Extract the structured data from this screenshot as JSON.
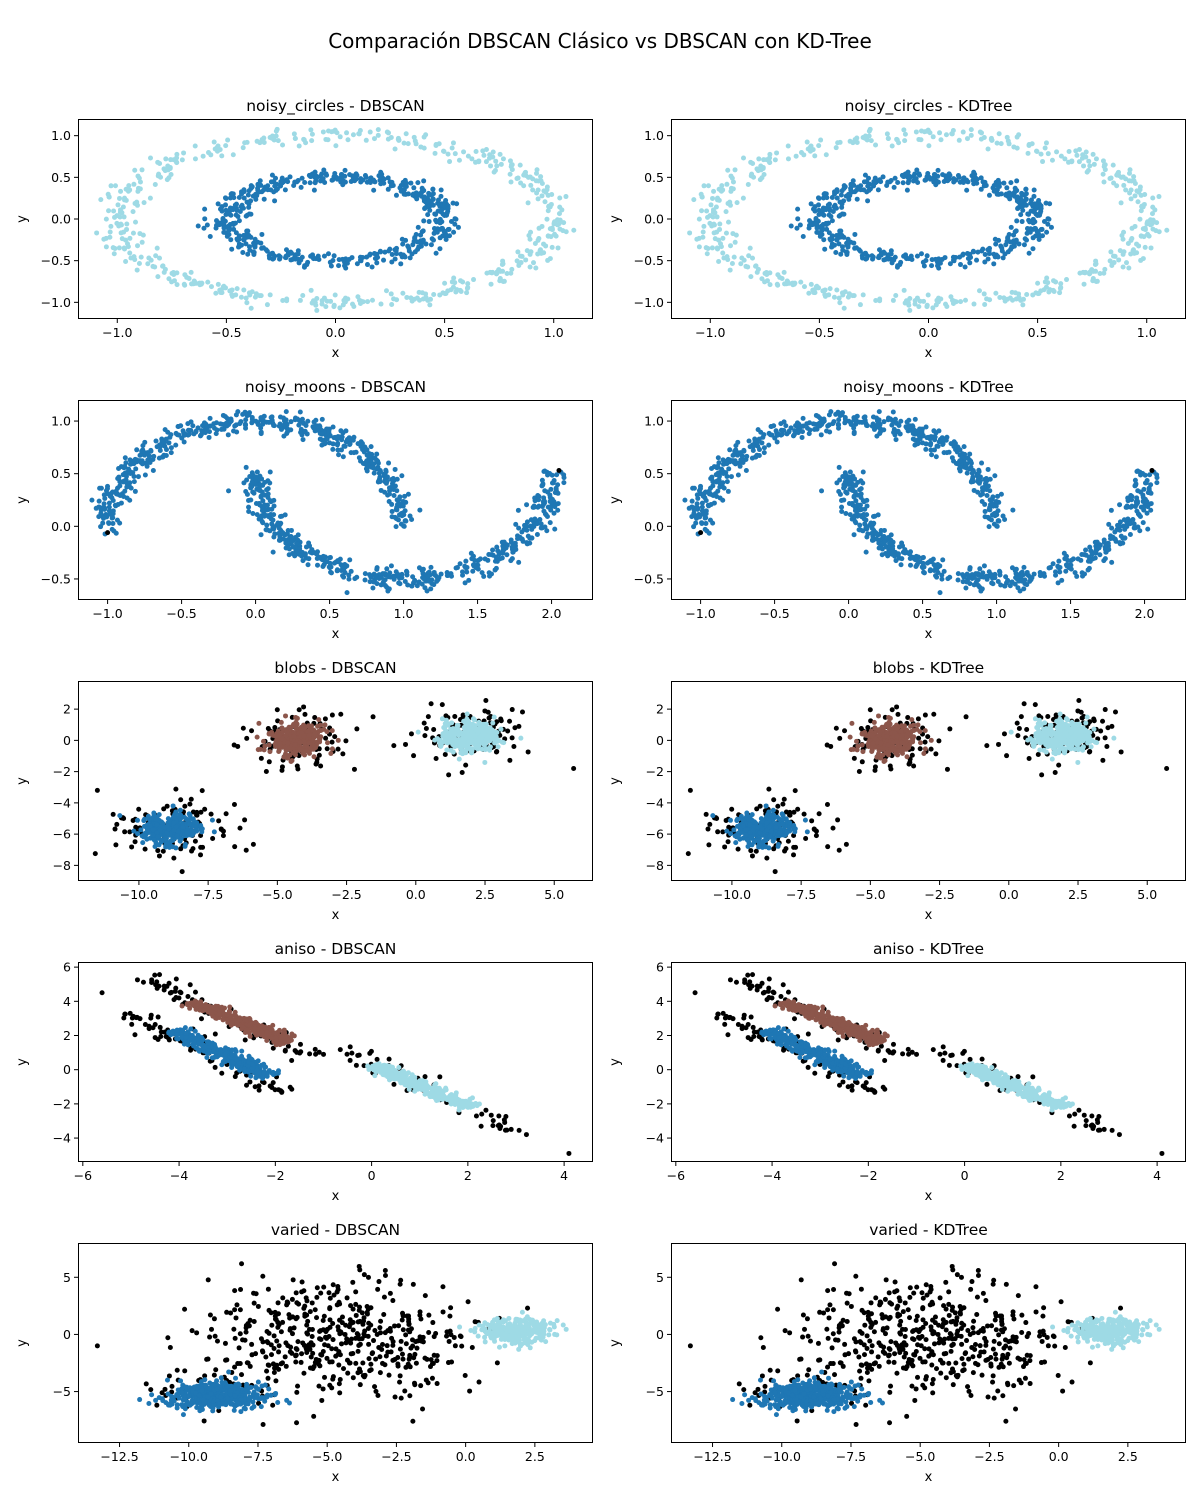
{
  "figure": {
    "title": "Comparación DBSCAN Clásico vs DBSCAN con KD-Tree",
    "colors": {
      "cluster_a": "#1f77b4",
      "cluster_b": "#8c564b",
      "cluster_c": "#9edae5",
      "noise": "#000000"
    }
  },
  "chart_data": [
    {
      "type": "scatter",
      "dataset": "noisy_circles",
      "method": "DBSCAN",
      "title": "noisy_circles - DBSCAN",
      "xlabel": "x",
      "ylabel": "y",
      "xlim": [
        -1.18,
        1.18
      ],
      "ylim": [
        -1.2,
        1.2
      ],
      "xticks": [
        -1.0,
        -0.5,
        0.0,
        0.5,
        1.0
      ],
      "xtick_labels": [
        "−1.0",
        "−0.5",
        "0.0",
        "0.5",
        "1.0"
      ],
      "yticks": [
        -1.0,
        -0.5,
        0.0,
        0.5,
        1.0
      ],
      "ytick_labels": [
        "−1.0",
        "−0.5",
        "0.0",
        "0.5",
        "1.0"
      ],
      "series": [
        {
          "color": "#9edae5",
          "shape": "ellipse",
          "center": [
            0,
            0
          ],
          "radii": [
            1.0,
            1.0
          ],
          "spread": 0.05,
          "count": 500
        },
        {
          "color": "#1f77b4",
          "shape": "ellipse",
          "center": [
            0,
            0
          ],
          "radii": [
            0.5,
            0.5
          ],
          "spread": 0.05,
          "count": 500
        }
      ]
    },
    {
      "type": "scatter",
      "dataset": "noisy_circles",
      "method": "KDTree",
      "title": "noisy_circles - KDTree",
      "xlabel": "x",
      "ylabel": "y",
      "xlim": [
        -1.18,
        1.18
      ],
      "ylim": [
        -1.2,
        1.2
      ],
      "xticks": [
        -1.0,
        -0.5,
        0.0,
        0.5,
        1.0
      ],
      "xtick_labels": [
        "−1.0",
        "−0.5",
        "0.0",
        "0.5",
        "1.0"
      ],
      "yticks": [
        -1.0,
        -0.5,
        0.0,
        0.5,
        1.0
      ],
      "ytick_labels": [
        "−1.0",
        "−0.5",
        "0.0",
        "0.5",
        "1.0"
      ],
      "series": [
        {
          "color": "#9edae5",
          "shape": "ellipse",
          "center": [
            0,
            0
          ],
          "radii": [
            1.0,
            1.0
          ],
          "spread": 0.05,
          "count": 500
        },
        {
          "color": "#1f77b4",
          "shape": "ellipse",
          "center": [
            0,
            0
          ],
          "radii": [
            0.5,
            0.5
          ],
          "spread": 0.05,
          "count": 500
        }
      ]
    },
    {
      "type": "scatter",
      "dataset": "noisy_moons",
      "method": "DBSCAN",
      "title": "noisy_moons - DBSCAN",
      "xlabel": "x",
      "ylabel": "y",
      "xlim": [
        -1.2,
        2.28
      ],
      "ylim": [
        -0.7,
        1.2
      ],
      "xticks": [
        -1.0,
        -0.5,
        0.0,
        0.5,
        1.0,
        1.5,
        2.0
      ],
      "xtick_labels": [
        "−1.0",
        "−0.5",
        "0.0",
        "0.5",
        "1.0",
        "1.5",
        "2.0"
      ],
      "yticks": [
        -0.5,
        0.0,
        0.5,
        1.0
      ],
      "ytick_labels": [
        "−0.5",
        "0.0",
        "0.5",
        "1.0"
      ],
      "series": [
        {
          "color": "#1f77b4",
          "shape": "arc",
          "center": [
            0,
            0
          ],
          "radii": [
            1.0,
            1.0
          ],
          "angles": [
            0,
            180
          ],
          "spread": 0.05,
          "count": 500
        },
        {
          "color": "#1f77b4",
          "shape": "arc",
          "center": [
            1,
            0.5
          ],
          "radii": [
            1.0,
            1.0
          ],
          "angles": [
            180,
            360
          ],
          "spread": 0.05,
          "count": 500
        }
      ],
      "points": [
        {
          "x": 2.05,
          "y": 0.53,
          "color": "#000000"
        },
        {
          "x": -1.0,
          "y": -0.06,
          "color": "#000000"
        }
      ]
    },
    {
      "type": "scatter",
      "dataset": "noisy_moons",
      "method": "KDTree",
      "title": "noisy_moons - KDTree",
      "xlabel": "x",
      "ylabel": "y",
      "xlim": [
        -1.2,
        2.28
      ],
      "ylim": [
        -0.7,
        1.2
      ],
      "xticks": [
        -1.0,
        -0.5,
        0.0,
        0.5,
        1.0,
        1.5,
        2.0
      ],
      "xtick_labels": [
        "−1.0",
        "−0.5",
        "0.0",
        "0.5",
        "1.0",
        "1.5",
        "2.0"
      ],
      "yticks": [
        -0.5,
        0.0,
        0.5,
        1.0
      ],
      "ytick_labels": [
        "−0.5",
        "0.0",
        "0.5",
        "1.0"
      ],
      "series": [
        {
          "color": "#1f77b4",
          "shape": "arc",
          "center": [
            0,
            0
          ],
          "radii": [
            1.0,
            1.0
          ],
          "angles": [
            0,
            180
          ],
          "spread": 0.05,
          "count": 500
        },
        {
          "color": "#1f77b4",
          "shape": "arc",
          "center": [
            1,
            0.5
          ],
          "radii": [
            1.0,
            1.0
          ],
          "angles": [
            180,
            360
          ],
          "spread": 0.05,
          "count": 500
        }
      ],
      "points": [
        {
          "x": 2.05,
          "y": 0.53,
          "color": "#000000"
        },
        {
          "x": -1.0,
          "y": -0.06,
          "color": "#000000"
        }
      ]
    },
    {
      "type": "scatter",
      "dataset": "blobs",
      "method": "DBSCAN",
      "title": "blobs - DBSCAN",
      "xlabel": "x",
      "ylabel": "y",
      "xlim": [
        -12.2,
        6.4
      ],
      "ylim": [
        -9.0,
        3.8
      ],
      "xticks": [
        -10.0,
        -7.5,
        -5.0,
        -2.5,
        0.0,
        2.5,
        5.0
      ],
      "xtick_labels": [
        "−10.0",
        "−7.5",
        "−5.0",
        "−2.5",
        "0.0",
        "2.5",
        "5.0"
      ],
      "yticks": [
        -8,
        -6,
        -4,
        -2,
        0,
        2
      ],
      "ytick_labels": [
        "−8",
        "−6",
        "−4",
        "−2",
        "0",
        "2"
      ],
      "series": [
        {
          "color": "#000000",
          "shape": "blob",
          "center": [
            -8.9,
            -5.7
          ],
          "radii": [
            1.05,
            0.95
          ],
          "count": 110
        },
        {
          "color": "#1f77b4",
          "shape": "blob",
          "center": [
            -8.9,
            -5.7
          ],
          "radii": [
            0.55,
            0.5
          ],
          "count": 320
        },
        {
          "color": "#000000",
          "shape": "blob",
          "center": [
            -4.3,
            0.1
          ],
          "radii": [
            1.05,
            0.95
          ],
          "count": 110
        },
        {
          "color": "#8c564b",
          "shape": "blob",
          "center": [
            -4.3,
            0.1
          ],
          "radii": [
            0.55,
            0.5
          ],
          "count": 320
        },
        {
          "color": "#000000",
          "shape": "blob",
          "center": [
            1.95,
            0.25
          ],
          "radii": [
            1.05,
            0.95
          ],
          "count": 110
        },
        {
          "color": "#9edae5",
          "shape": "blob",
          "center": [
            1.95,
            0.25
          ],
          "radii": [
            0.55,
            0.5
          ],
          "count": 320
        }
      ],
      "points": [
        {
          "x": 5.7,
          "y": -1.8,
          "color": "#000000"
        },
        {
          "x": -11.5,
          "y": -3.2,
          "color": "#000000"
        }
      ]
    },
    {
      "type": "scatter",
      "dataset": "blobs",
      "method": "KDTree",
      "title": "blobs - KDTree",
      "xlabel": "x",
      "ylabel": "y",
      "xlim": [
        -12.2,
        6.4
      ],
      "ylim": [
        -9.0,
        3.8
      ],
      "xticks": [
        -10.0,
        -7.5,
        -5.0,
        -2.5,
        0.0,
        2.5,
        5.0
      ],
      "xtick_labels": [
        "−10.0",
        "−7.5",
        "−5.0",
        "−2.5",
        "0.0",
        "2.5",
        "5.0"
      ],
      "yticks": [
        -8,
        -6,
        -4,
        -2,
        0,
        2
      ],
      "ytick_labels": [
        "−8",
        "−6",
        "−4",
        "−2",
        "0",
        "2"
      ],
      "series": [
        {
          "color": "#000000",
          "shape": "blob",
          "center": [
            -8.9,
            -5.7
          ],
          "radii": [
            1.05,
            0.95
          ],
          "count": 110
        },
        {
          "color": "#1f77b4",
          "shape": "blob",
          "center": [
            -8.9,
            -5.7
          ],
          "radii": [
            0.55,
            0.5
          ],
          "count": 320
        },
        {
          "color": "#000000",
          "shape": "blob",
          "center": [
            -4.3,
            0.1
          ],
          "radii": [
            1.05,
            0.95
          ],
          "count": 110
        },
        {
          "color": "#8c564b",
          "shape": "blob",
          "center": [
            -4.3,
            0.1
          ],
          "radii": [
            0.55,
            0.5
          ],
          "count": 320
        },
        {
          "color": "#000000",
          "shape": "blob",
          "center": [
            1.95,
            0.25
          ],
          "radii": [
            1.05,
            0.95
          ],
          "count": 110
        },
        {
          "color": "#9edae5",
          "shape": "blob",
          "center": [
            1.95,
            0.25
          ],
          "radii": [
            0.55,
            0.5
          ],
          "count": 320
        }
      ],
      "points": [
        {
          "x": 5.7,
          "y": -1.8,
          "color": "#000000"
        },
        {
          "x": -11.5,
          "y": -3.2,
          "color": "#000000"
        }
      ]
    },
    {
      "type": "scatter",
      "dataset": "aniso",
      "method": "DBSCAN",
      "title": "aniso - DBSCAN",
      "xlabel": "x",
      "ylabel": "y",
      "xlim": [
        -6.1,
        4.6
      ],
      "ylim": [
        -5.4,
        6.3
      ],
      "xticks": [
        -6,
        -4,
        -2,
        0,
        2,
        4
      ],
      "xtick_labels": [
        "−6",
        "−4",
        "−2",
        "0",
        "2",
        "4"
      ],
      "yticks": [
        -4,
        -2,
        0,
        2,
        4,
        6
      ],
      "ytick_labels": [
        "−4",
        "−2",
        "0",
        "2",
        "4",
        "6"
      ],
      "series": [
        {
          "color": "#000000",
          "shape": "band",
          "from": [
            -4.7,
            5.4
          ],
          "to": [
            -1.2,
            0.7
          ],
          "width": 0.45,
          "count": 90
        },
        {
          "color": "#8c564b",
          "shape": "band",
          "from": [
            -3.7,
            4.0
          ],
          "to": [
            -1.7,
            1.6
          ],
          "width": 0.3,
          "count": 300
        },
        {
          "color": "#000000",
          "shape": "band",
          "from": [
            -5.1,
            3.3
          ],
          "to": [
            -1.7,
            -1.4
          ],
          "width": 0.45,
          "count": 90
        },
        {
          "color": "#1f77b4",
          "shape": "band",
          "from": [
            -4.1,
            2.3
          ],
          "to": [
            -2.1,
            -0.4
          ],
          "width": 0.3,
          "count": 300
        },
        {
          "color": "#000000",
          "shape": "band",
          "from": [
            -0.6,
            1.3
          ],
          "to": [
            3.2,
            -3.9
          ],
          "width": 0.4,
          "count": 70
        },
        {
          "color": "#9edae5",
          "shape": "band",
          "from": [
            0.0,
            0.3
          ],
          "to": [
            2.1,
            -2.2
          ],
          "width": 0.3,
          "count": 300
        }
      ],
      "points": [
        {
          "x": -5.6,
          "y": 4.5,
          "color": "#000000"
        },
        {
          "x": 4.1,
          "y": -4.9,
          "color": "#000000"
        }
      ]
    },
    {
      "type": "scatter",
      "dataset": "aniso",
      "method": "KDTree",
      "title": "aniso - KDTree",
      "xlabel": "x",
      "ylabel": "y",
      "xlim": [
        -6.1,
        4.6
      ],
      "ylim": [
        -5.4,
        6.3
      ],
      "xticks": [
        -6,
        -4,
        -2,
        0,
        2,
        4
      ],
      "xtick_labels": [
        "−6",
        "−4",
        "−2",
        "0",
        "2",
        "4"
      ],
      "yticks": [
        -4,
        -2,
        0,
        2,
        4,
        6
      ],
      "ytick_labels": [
        "−4",
        "−2",
        "0",
        "2",
        "4",
        "6"
      ],
      "series": [
        {
          "color": "#000000",
          "shape": "band",
          "from": [
            -4.7,
            5.4
          ],
          "to": [
            -1.2,
            0.7
          ],
          "width": 0.45,
          "count": 90
        },
        {
          "color": "#8c564b",
          "shape": "band",
          "from": [
            -3.7,
            4.0
          ],
          "to": [
            -1.7,
            1.6
          ],
          "width": 0.3,
          "count": 300
        },
        {
          "color": "#000000",
          "shape": "band",
          "from": [
            -5.1,
            3.3
          ],
          "to": [
            -1.7,
            -1.4
          ],
          "width": 0.45,
          "count": 90
        },
        {
          "color": "#1f77b4",
          "shape": "band",
          "from": [
            -4.1,
            2.3
          ],
          "to": [
            -2.1,
            -0.4
          ],
          "width": 0.3,
          "count": 300
        },
        {
          "color": "#000000",
          "shape": "band",
          "from": [
            -0.6,
            1.3
          ],
          "to": [
            3.2,
            -3.9
          ],
          "width": 0.4,
          "count": 70
        },
        {
          "color": "#9edae5",
          "shape": "band",
          "from": [
            0.0,
            0.3
          ],
          "to": [
            2.1,
            -2.2
          ],
          "width": 0.3,
          "count": 300
        }
      ],
      "points": [
        {
          "x": -5.6,
          "y": 4.5,
          "color": "#000000"
        },
        {
          "x": 4.1,
          "y": -4.9,
          "color": "#000000"
        }
      ]
    },
    {
      "type": "scatter",
      "dataset": "varied",
      "method": "DBSCAN",
      "title": "varied - DBSCAN",
      "xlabel": "x",
      "ylabel": "y",
      "xlim": [
        -14.0,
        4.6
      ],
      "ylim": [
        -9.5,
        8.0
      ],
      "xticks": [
        -12.5,
        -10.0,
        -7.5,
        -5.0,
        -2.5,
        0.0,
        2.5
      ],
      "xtick_labels": [
        "−12.5",
        "−10.0",
        "−7.5",
        "−5.0",
        "−2.5",
        "0.0",
        "2.5"
      ],
      "yticks": [
        -5,
        0,
        5
      ],
      "ytick_labels": [
        "−5",
        "0",
        "5"
      ],
      "series": [
        {
          "color": "#000000",
          "shape": "blob",
          "center": [
            -4.6,
            -0.4
          ],
          "radii": [
            2.6,
            2.6
          ],
          "count": 480
        },
        {
          "color": "#000000",
          "shape": "blob",
          "center": [
            -9.2,
            -5.2
          ],
          "radii": [
            1.3,
            1.2
          ],
          "count": 50
        },
        {
          "color": "#1f77b4",
          "shape": "blob",
          "center": [
            -9.0,
            -5.3
          ],
          "radii": [
            0.9,
            0.6
          ],
          "count": 420
        },
        {
          "color": "#9edae5",
          "shape": "blob",
          "center": [
            1.8,
            0.3
          ],
          "radii": [
            0.6,
            0.5
          ],
          "count": 330
        }
      ],
      "points": [
        {
          "x": -13.3,
          "y": -1.0,
          "color": "#000000"
        }
      ]
    },
    {
      "type": "scatter",
      "dataset": "varied",
      "method": "KDTree",
      "title": "varied - KDTree",
      "xlabel": "x",
      "ylabel": "y",
      "xlim": [
        -14.0,
        4.6
      ],
      "ylim": [
        -9.5,
        8.0
      ],
      "xticks": [
        -12.5,
        -10.0,
        -7.5,
        -5.0,
        -2.5,
        0.0,
        2.5
      ],
      "xtick_labels": [
        "−12.5",
        "−10.0",
        "−7.5",
        "−5.0",
        "−2.5",
        "0.0",
        "2.5"
      ],
      "yticks": [
        -5,
        0,
        5
      ],
      "ytick_labels": [
        "−5",
        "0",
        "5"
      ],
      "series": [
        {
          "color": "#000000",
          "shape": "blob",
          "center": [
            -4.6,
            -0.4
          ],
          "radii": [
            2.6,
            2.6
          ],
          "count": 480
        },
        {
          "color": "#000000",
          "shape": "blob",
          "center": [
            -9.2,
            -5.2
          ],
          "radii": [
            1.3,
            1.2
          ],
          "count": 50
        },
        {
          "color": "#1f77b4",
          "shape": "blob",
          "center": [
            -9.0,
            -5.3
          ],
          "radii": [
            0.9,
            0.6
          ],
          "count": 420
        },
        {
          "color": "#9edae5",
          "shape": "blob",
          "center": [
            1.8,
            0.3
          ],
          "radii": [
            0.6,
            0.5
          ],
          "count": 330
        }
      ],
      "points": [
        {
          "x": -13.3,
          "y": -1.0,
          "color": "#000000"
        }
      ]
    }
  ]
}
